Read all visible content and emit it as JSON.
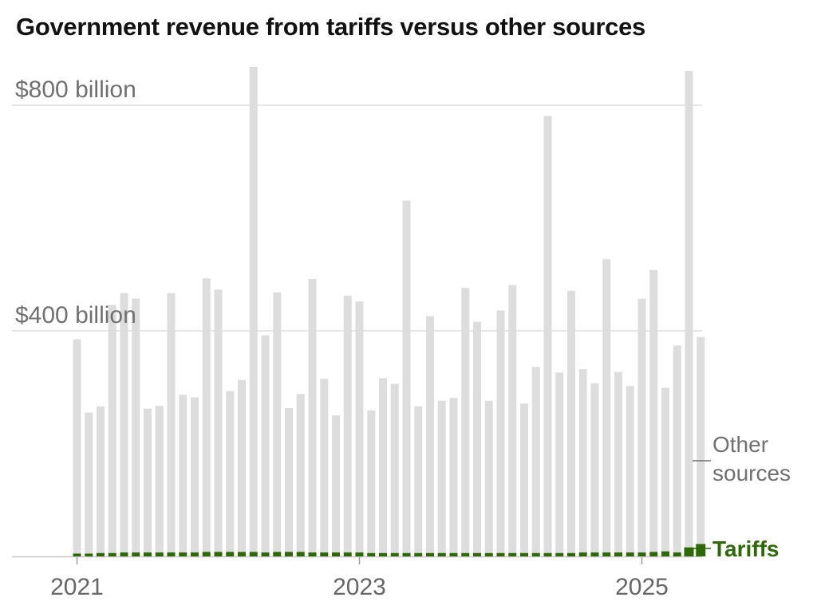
{
  "chart_data": {
    "type": "bar",
    "stacked": true,
    "title": "Government revenue from tariffs versus other sources",
    "xlabel": "",
    "ylabel": "",
    "ylim": [
      0,
      870
    ],
    "y_ticks": [
      {
        "value": 400,
        "label": "$400 billion"
      },
      {
        "value": 800,
        "label": "$800 billion"
      }
    ],
    "x_ticks": [
      {
        "index": 0,
        "label": "2021"
      },
      {
        "index": 24,
        "label": "2023"
      },
      {
        "index": 48,
        "label": "2025"
      }
    ],
    "grid": true,
    "series": [
      {
        "name": "Tariffs",
        "label_lines": [
          "Tariffs"
        ],
        "color": "#2d6a05",
        "values": [
          5,
          5,
          6,
          6,
          7,
          7,
          7,
          7,
          7,
          7,
          7,
          8,
          8,
          8,
          8,
          8,
          7,
          8,
          8,
          8,
          7,
          7,
          7,
          7,
          7,
          6,
          6,
          6,
          6,
          6,
          6,
          6,
          6,
          6,
          6,
          6,
          6,
          6,
          6,
          6,
          6,
          6,
          6,
          7,
          7,
          7,
          7,
          7,
          7,
          8,
          9,
          7,
          16,
          22
        ]
      },
      {
        "name": "Other sources",
        "label_lines": [
          "Other",
          "sources"
        ],
        "color": "#dddddd",
        "values": [
          380,
          250,
          260,
          440,
          460,
          450,
          255,
          260,
          460,
          280,
          275,
          485,
          465,
          285,
          305,
          860,
          385,
          460,
          255,
          280,
          485,
          308,
          243,
          455,
          445,
          253,
          310,
          300,
          625,
          260,
          420,
          270,
          275,
          470,
          410,
          270,
          430,
          475,
          265,
          330,
          775,
          320,
          465,
          325,
          300,
          520,
          320,
          295,
          450,
          500,
          290,
          367,
          845,
          367
        ]
      }
    ]
  }
}
